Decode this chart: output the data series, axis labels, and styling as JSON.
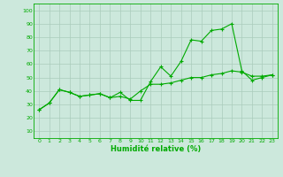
{
  "xlabel": "Humidité relative (%)",
  "xlim": [
    -0.5,
    23.5
  ],
  "ylim": [
    5,
    105
  ],
  "yticks": [
    10,
    20,
    30,
    40,
    50,
    60,
    70,
    80,
    90,
    100
  ],
  "xticks": [
    0,
    1,
    2,
    3,
    4,
    5,
    6,
    7,
    8,
    9,
    10,
    11,
    12,
    13,
    14,
    15,
    16,
    17,
    18,
    19,
    20,
    21,
    22,
    23
  ],
  "background_color": "#cce8dc",
  "grid_color": "#aaccbb",
  "line_color": "#00aa00",
  "line1_x": [
    0,
    1,
    2,
    3,
    4,
    5,
    6,
    7,
    8,
    9,
    10,
    11,
    12,
    13,
    14,
    15,
    16,
    17,
    18,
    19,
    20,
    21,
    22,
    23
  ],
  "line1_y": [
    26,
    31,
    41,
    39,
    36,
    37,
    38,
    35,
    39,
    33,
    33,
    47,
    58,
    51,
    62,
    78,
    77,
    85,
    86,
    90,
    55,
    48,
    50,
    52
  ],
  "line2_x": [
    0,
    1,
    2,
    3,
    4,
    5,
    6,
    7,
    8,
    9,
    10,
    11,
    12,
    13,
    14,
    15,
    16,
    17,
    18,
    19,
    20,
    21,
    22,
    23
  ],
  "line2_y": [
    26,
    31,
    41,
    39,
    36,
    37,
    38,
    35,
    36,
    34,
    40,
    45,
    45,
    46,
    48,
    50,
    50,
    52,
    53,
    55,
    54,
    51,
    51,
    52
  ]
}
